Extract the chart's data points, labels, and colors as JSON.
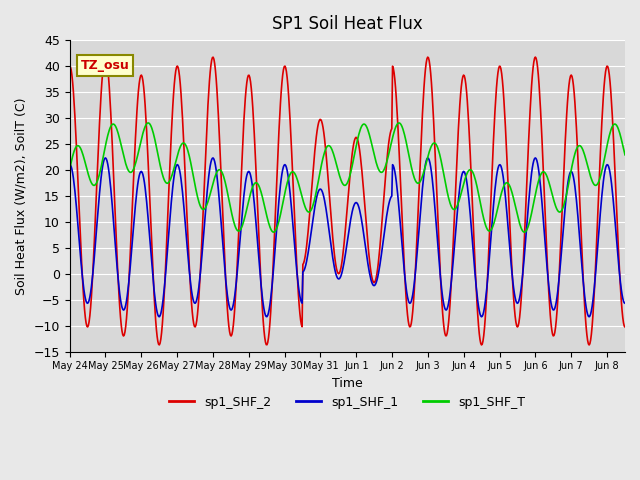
{
  "title": "SP1 Soil Heat Flux",
  "xlabel": "Time",
  "ylabel": "Soil Heat Flux (W/m2), SoilT (C)",
  "ylim": [
    -15,
    45
  ],
  "bg_color": "#e8e8e8",
  "plot_bg_color": "#d8d8d8",
  "tz_label": "TZ_osu",
  "legend_labels": [
    "sp1_SHF_2",
    "sp1_SHF_1",
    "sp1_SHF_T"
  ],
  "line_colors": [
    "#dd0000",
    "#0000cc",
    "#00cc00"
  ],
  "xtick_labels": [
    "May 24",
    "May 25",
    "May 26",
    "May 27",
    "May 28",
    "May 29",
    "May 30",
    "May 31",
    "Jun 1",
    "Jun 2",
    "Jun 3",
    "Jun 4",
    "Jun 5",
    "Jun 6",
    "Jun 7",
    "Jun 8"
  ],
  "ytick_values": [
    -15,
    -10,
    -5,
    0,
    5,
    10,
    15,
    20,
    25,
    30,
    35,
    40,
    45
  ],
  "start_day": 0,
  "n_days": 15.5,
  "samples_per_day": 48
}
